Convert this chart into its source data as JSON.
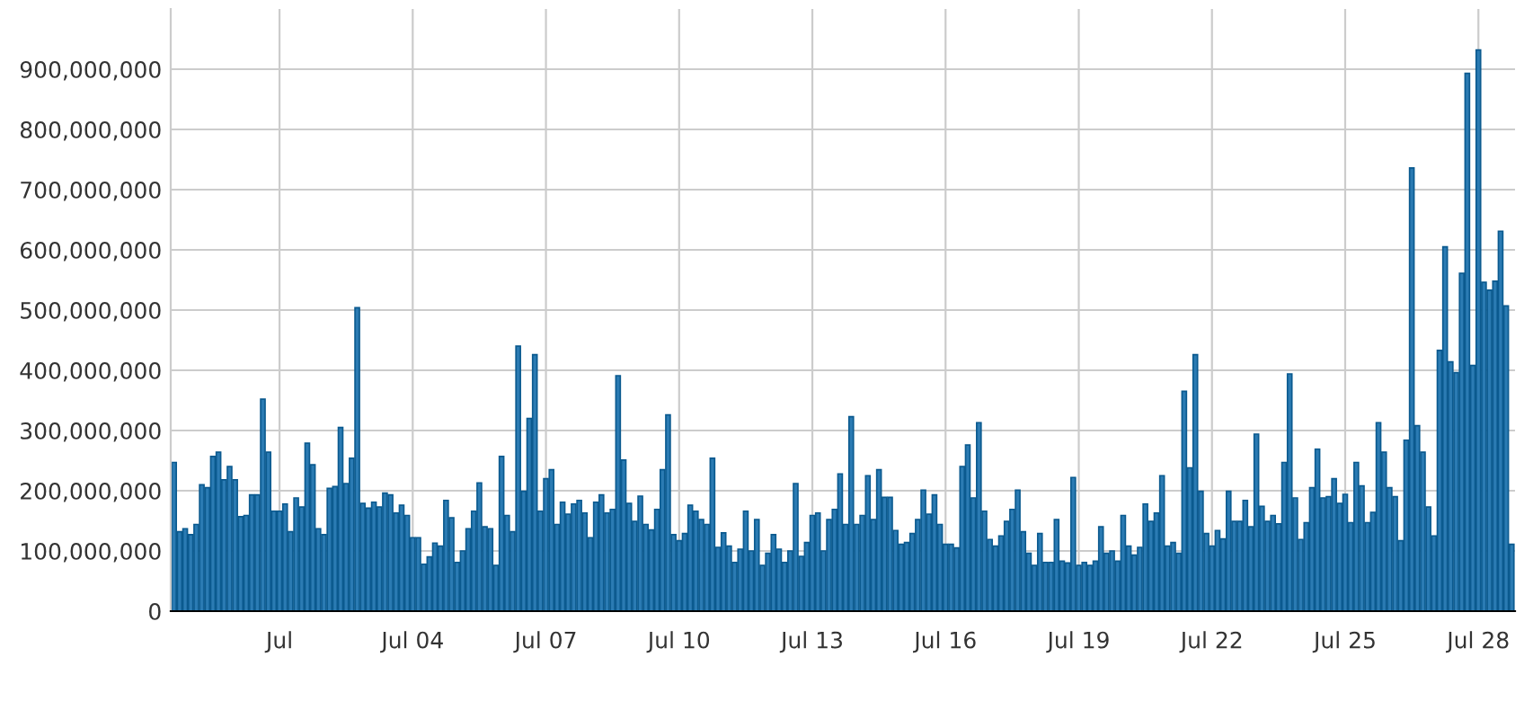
{
  "chart_data": {
    "type": "bar",
    "categories": [
      null,
      null,
      null,
      null,
      null,
      null,
      null,
      null,
      null,
      null,
      null,
      null,
      null,
      null,
      null,
      null,
      null,
      null,
      null,
      "Jul",
      null,
      null,
      null,
      null,
      null,
      null,
      null,
      null,
      null,
      null,
      null,
      null,
      null,
      null,
      null,
      null,
      null,
      null,
      null,
      null,
      null,
      null,
      null,
      "Jul 04",
      null,
      null,
      null,
      null,
      null,
      null,
      null,
      null,
      null,
      null,
      null,
      null,
      null,
      null,
      null,
      null,
      null,
      null,
      null,
      null,
      null,
      null,
      null,
      "Jul 07",
      null,
      null,
      null,
      null,
      null,
      null,
      null,
      null,
      null,
      null,
      null,
      null,
      null,
      null,
      null,
      null,
      null,
      null,
      null,
      null,
      null,
      null,
      null,
      "Jul 10",
      null,
      null,
      null,
      null,
      null,
      null,
      null,
      null,
      null,
      null,
      null,
      null,
      null,
      null,
      null,
      null,
      null,
      null,
      null,
      null,
      null,
      null,
      null,
      "Jul 13",
      null,
      null,
      null,
      null,
      null,
      null,
      null,
      null,
      null,
      null,
      null,
      null,
      null,
      null,
      null,
      null,
      null,
      null,
      null,
      null,
      null,
      null,
      null,
      "Jul 16",
      null,
      null,
      null,
      null,
      null,
      null,
      null,
      null,
      null,
      null,
      null,
      null,
      null,
      null,
      null,
      null,
      null,
      null,
      null,
      null,
      null,
      null,
      null,
      "Jul 19",
      null,
      null,
      null,
      null,
      null,
      null,
      null,
      null,
      null,
      null,
      null,
      null,
      null,
      null,
      null,
      null,
      null,
      null,
      null,
      null,
      null,
      null,
      null,
      "Jul 22",
      null,
      null,
      null,
      null,
      null,
      null,
      null,
      null,
      null,
      null,
      null,
      null,
      null,
      null,
      null,
      null,
      null,
      null,
      null,
      null,
      null,
      null,
      null,
      "Jul 25",
      null,
      null,
      null,
      null,
      null,
      null,
      null,
      null,
      null,
      null,
      null,
      null,
      null,
      null,
      null,
      null,
      null,
      null,
      null,
      null,
      null,
      null,
      null,
      "Jul 28",
      null,
      null,
      null,
      null,
      null,
      null
    ],
    "series": [
      {
        "color": "#2b7bb3",
        "values": [
          247000000,
          132000000,
          137000000,
          127000000,
          144000000,
          210000000,
          205000000,
          257000000,
          264000000,
          218000000,
          240000000,
          218000000,
          157000000,
          159000000,
          193000000,
          193000000,
          352000000,
          264000000,
          166000000,
          166000000,
          178000000,
          132000000,
          188000000,
          173000000,
          279000000,
          243000000,
          137000000,
          127000000,
          204000000,
          207000000,
          305000000,
          212000000,
          254000000,
          504000000,
          179000000,
          171000000,
          181000000,
          173000000,
          196000000,
          193000000,
          163000000,
          176000000,
          159000000,
          122000000,
          122000000,
          78000000,
          90000000,
          113000000,
          108000000,
          184000000,
          155000000,
          81000000,
          100000000,
          137000000,
          166000000,
          213000000,
          140000000,
          137000000,
          76000000,
          257000000,
          159000000,
          132000000,
          440000000,
          199000000,
          320000000,
          426000000,
          166000000,
          220000000,
          235000000,
          144000000,
          181000000,
          161000000,
          178000000,
          184000000,
          163000000,
          122000000,
          181000000,
          193000000,
          163000000,
          169000000,
          391000000,
          251000000,
          179000000,
          149000000,
          191000000,
          144000000,
          135000000,
          169000000,
          235000000,
          326000000,
          127000000,
          117000000,
          129000000,
          176000000,
          166000000,
          152000000,
          144000000,
          254000000,
          106000000,
          130000000,
          108000000,
          81000000,
          103000000,
          166000000,
          100000000,
          152000000,
          76000000,
          96000000,
          127000000,
          103000000,
          81000000,
          100000000,
          212000000,
          91000000,
          114000000,
          159000000,
          163000000,
          100000000,
          152000000,
          169000000,
          228000000,
          144000000,
          323000000,
          144000000,
          159000000,
          225000000,
          152000000,
          235000000,
          189000000,
          189000000,
          134000000,
          111000000,
          114000000,
          129000000,
          152000000,
          201000000,
          161000000,
          193000000,
          144000000,
          111000000,
          111000000,
          105000000,
          240000000,
          276000000,
          188000000,
          313000000,
          166000000,
          119000000,
          108000000,
          125000000,
          149000000,
          169000000,
          201000000,
          132000000,
          96000000,
          76000000,
          129000000,
          81000000,
          81000000,
          152000000,
          83000000,
          80000000,
          222000000,
          76000000,
          81000000,
          76000000,
          83000000,
          140000000,
          96000000,
          100000000,
          83000000,
          159000000,
          108000000,
          93000000,
          106000000,
          178000000,
          149000000,
          163000000,
          225000000,
          108000000,
          114000000,
          96000000,
          365000000,
          238000000,
          426000000,
          199000000,
          129000000,
          108000000,
          134000000,
          120000000,
          199000000,
          149000000,
          149000000,
          184000000,
          140000000,
          294000000,
          174000000,
          149000000,
          159000000,
          145000000,
          247000000,
          394000000,
          188000000,
          119000000,
          147000000,
          205000000,
          269000000,
          188000000,
          190000000,
          220000000,
          179000000,
          194000000,
          147000000,
          247000000,
          208000000,
          147000000,
          164000000,
          313000000,
          264000000,
          205000000,
          190000000,
          117000000,
          284000000,
          736000000,
          308000000,
          264000000,
          173000000,
          125000000,
          433000000,
          605000000,
          414000000,
          396000000,
          561000000,
          893000000,
          408000000,
          932000000,
          546000000,
          533000000,
          548000000,
          631000000,
          507000000,
          111000000
        ]
      }
    ],
    "ylim": [
      0,
      1000000000
    ],
    "yticks": [
      {
        "value": 0,
        "label": "0"
      },
      {
        "value": 100000000,
        "label": "100,000,000"
      },
      {
        "value": 200000000,
        "label": "200,000,000"
      },
      {
        "value": 300000000,
        "label": "300,000,000"
      },
      {
        "value": 400000000,
        "label": "400,000,000"
      },
      {
        "value": 500000000,
        "label": "500,000,000"
      },
      {
        "value": 600000000,
        "label": "600,000,000"
      },
      {
        "value": 700000000,
        "label": "700,000,000"
      },
      {
        "value": 800000000,
        "label": "800,000,000"
      },
      {
        "value": 900000000,
        "label": "900,000,000"
      }
    ],
    "grid": true
  }
}
